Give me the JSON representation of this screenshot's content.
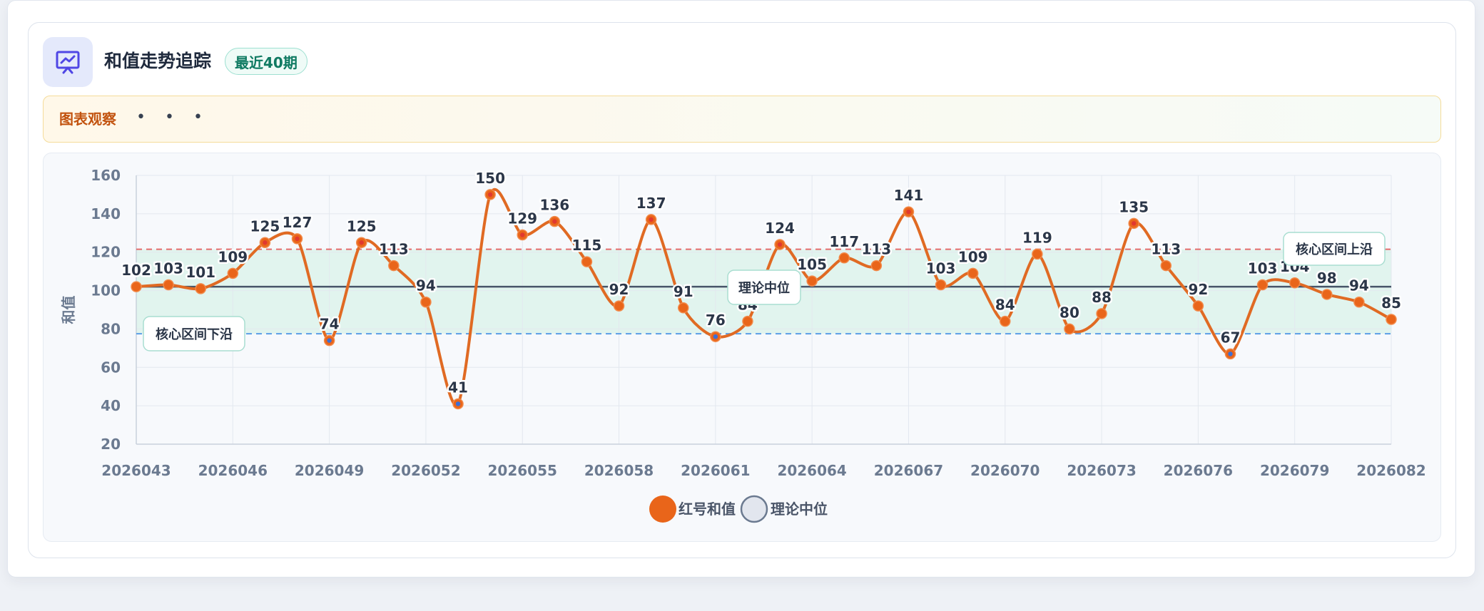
{
  "header": {
    "title": "和值走势追踪",
    "badge": "最近40期",
    "icon": "chart-presentation-icon"
  },
  "observation": {
    "label": "图表观察",
    "dots": "• • •"
  },
  "colors": {
    "series": "#e06a23",
    "point": "#e9651a",
    "median": "#475569",
    "upper": "#e46b6b",
    "lower": "#5b9ee6",
    "band": "#d9f2ea"
  },
  "chart_data": {
    "type": "line",
    "ylabel": "和值",
    "ylim": [
      20,
      160
    ],
    "yticks": [
      20,
      40,
      60,
      80,
      100,
      120,
      140,
      160
    ],
    "x": [
      "2026043",
      "2026044",
      "2026045",
      "2026046",
      "2026047",
      "2026048",
      "2026049",
      "2026050",
      "2026051",
      "2026052",
      "2026053",
      "2026054",
      "2026055",
      "2026056",
      "2026057",
      "2026058",
      "2026059",
      "2026060",
      "2026061",
      "2026062",
      "2026063",
      "2026064",
      "2026065",
      "2026066",
      "2026067",
      "2026068",
      "2026069",
      "2026070",
      "2026071",
      "2026072",
      "2026073",
      "2026074",
      "2026075",
      "2026076",
      "2026077",
      "2026078",
      "2026079",
      "2026080",
      "2026081",
      "2026082"
    ],
    "xtick_labels": [
      "2026043",
      "2026046",
      "2026049",
      "2026052",
      "2026055",
      "2026058",
      "2026061",
      "2026064",
      "2026067",
      "2026070",
      "2026073",
      "2026076",
      "2026079",
      "2026082"
    ],
    "series": [
      {
        "name": "红号和值",
        "values": [
          102,
          103,
          101,
          109,
          125,
          127,
          74,
          125,
          113,
          94,
          41,
          150,
          129,
          136,
          115,
          92,
          137,
          91,
          76,
          84,
          124,
          105,
          117,
          113,
          141,
          103,
          109,
          84,
          119,
          80,
          88,
          135,
          113,
          92,
          67,
          103,
          104,
          98,
          94,
          85
        ]
      }
    ],
    "median": 102,
    "median_name": "理论中位",
    "upper_band": 121.5,
    "lower_band": 77.5,
    "annotations": {
      "upper": "核心区间上沿",
      "median": "理论中位",
      "lower": "核心区间下沿"
    },
    "legend": [
      "红号和值",
      "理论中位"
    ],
    "legend_position": "bottom-center",
    "grid": true
  }
}
